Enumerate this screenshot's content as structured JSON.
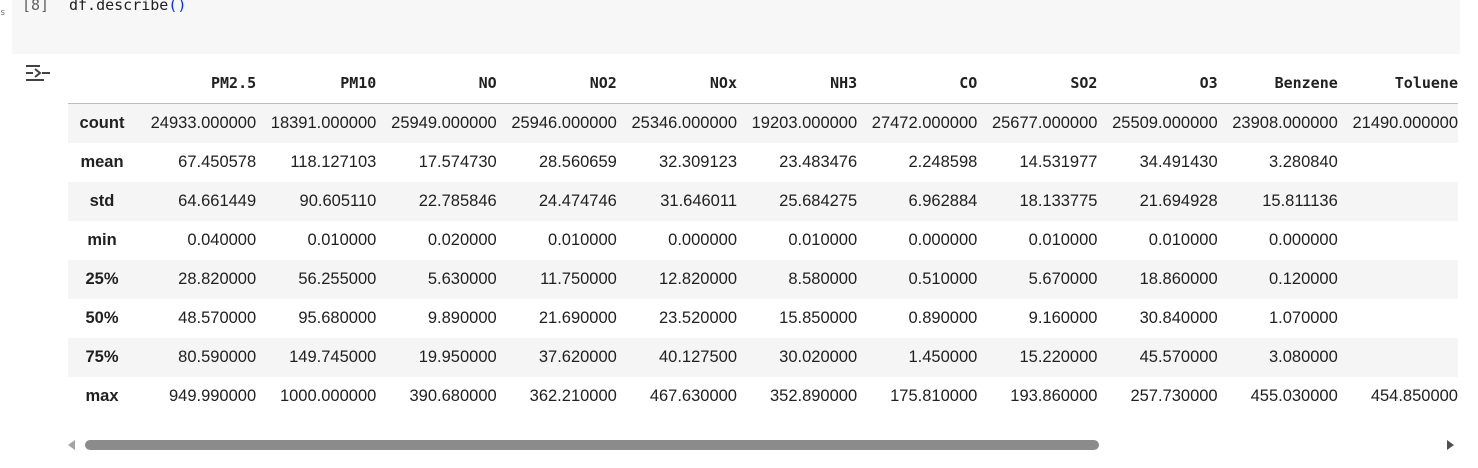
{
  "cell": {
    "execution_count": "[8]",
    "code_prefix": "df.describe",
    "code_paren": "()",
    "left_margin_text": "s"
  },
  "output": {
    "icon": "output-options-icon",
    "columns": [
      "PM2.5",
      "PM10",
      "NO",
      "NO2",
      "NOx",
      "NH3",
      "CO",
      "SO2",
      "O3",
      "Benzene",
      "Toluene"
    ],
    "rows": [
      {
        "label": "count",
        "values": [
          "24933.000000",
          "18391.000000",
          "25949.000000",
          "25946.000000",
          "25346.000000",
          "19203.000000",
          "27472.000000",
          "25677.000000",
          "25509.000000",
          "23908.000000",
          "21490.000000"
        ]
      },
      {
        "label": "mean",
        "values": [
          "67.450578",
          "118.127103",
          "17.574730",
          "28.560659",
          "32.309123",
          "23.483476",
          "2.248598",
          "14.531977",
          "34.491430",
          "3.280840",
          ""
        ]
      },
      {
        "label": "std",
        "values": [
          "64.661449",
          "90.605110",
          "22.785846",
          "24.474746",
          "31.646011",
          "25.684275",
          "6.962884",
          "18.133775",
          "21.694928",
          "15.811136",
          ""
        ]
      },
      {
        "label": "min",
        "values": [
          "0.040000",
          "0.010000",
          "0.020000",
          "0.010000",
          "0.000000",
          "0.010000",
          "0.000000",
          "0.010000",
          "0.010000",
          "0.000000",
          ""
        ]
      },
      {
        "label": "25%",
        "values": [
          "28.820000",
          "56.255000",
          "5.630000",
          "11.750000",
          "12.820000",
          "8.580000",
          "0.510000",
          "5.670000",
          "18.860000",
          "0.120000",
          ""
        ]
      },
      {
        "label": "50%",
        "values": [
          "48.570000",
          "95.680000",
          "9.890000",
          "21.690000",
          "23.520000",
          "15.850000",
          "0.890000",
          "9.160000",
          "30.840000",
          "1.070000",
          ""
        ]
      },
      {
        "label": "75%",
        "values": [
          "80.590000",
          "149.745000",
          "19.950000",
          "37.620000",
          "40.127500",
          "30.020000",
          "1.450000",
          "15.220000",
          "45.570000",
          "3.080000",
          ""
        ]
      },
      {
        "label": "max",
        "values": [
          "949.990000",
          "1000.000000",
          "390.680000",
          "362.210000",
          "467.630000",
          "352.890000",
          "175.810000",
          "193.860000",
          "257.730000",
          "455.030000",
          "454.850000"
        ]
      }
    ]
  },
  "scrollbar": {
    "thumb_fraction": 0.75,
    "left_arrow_icon": "triangle-left-icon",
    "right_arrow_icon": "triangle-right-icon"
  }
}
